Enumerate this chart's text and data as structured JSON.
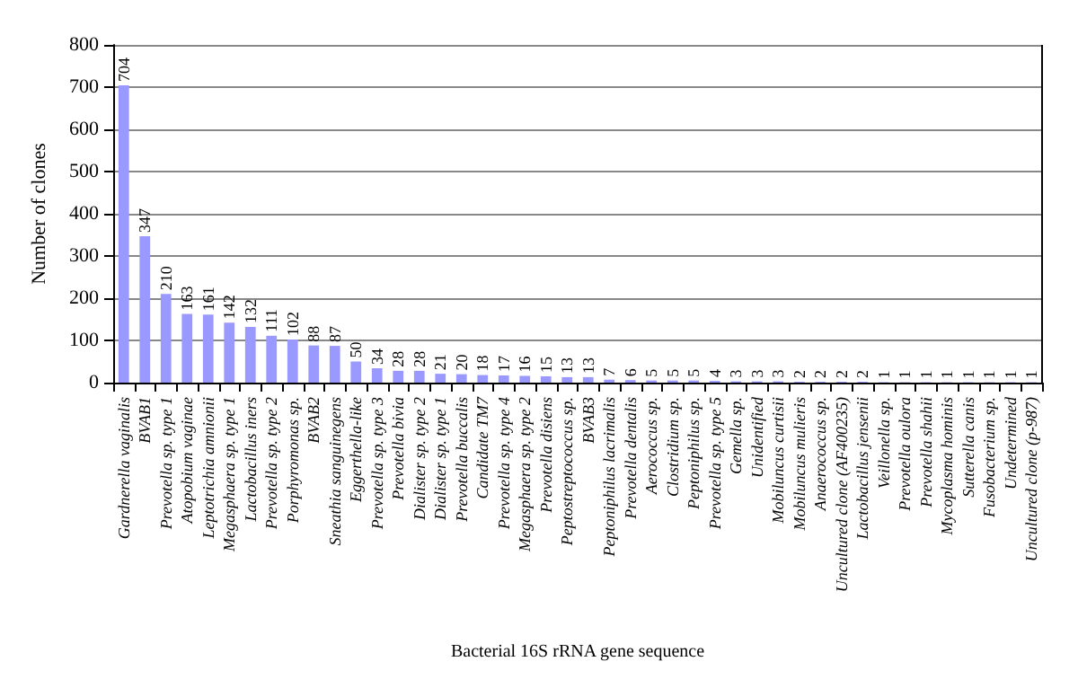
{
  "chart_data": {
    "type": "bar",
    "xlabel": "Bacterial 16S rRNA gene sequence",
    "ylabel": "Number of clones",
    "categories": [
      "Gardnerella vaginalis",
      "BVAB1",
      "Prevotella sp. type 1",
      "Atopobium vaginae",
      "Leptotrichia amnionii",
      "Megasphaera sp. type 1",
      "Lactobacillus iners",
      "Prevotella sp. type 2",
      "Porphyromonas sp.",
      "BVAB2",
      "Sneathia sanguinegens",
      "Eggerthella-like",
      "Prevotella sp. type 3",
      "Prevotella bivia",
      "Dialister sp. type 2",
      "Dialister sp. type 1",
      "Prevotella buccalis",
      "Candidate TM7",
      "Prevotella sp. type 4",
      "Megasphaera sp. type 2",
      "Prevotella disiens",
      "Peptostreptococcus sp.",
      "BVAB3",
      "Peptoniphilus lacrimalis",
      "Prevotella dentalis",
      "Aerococcus sp.",
      "Clostridium sp.",
      "Peptoniphilus sp.",
      "Prevotella sp. type 5",
      "Gemella sp.",
      "Unidentified",
      "Mobiluncus curtisii",
      "Mobiluncus mulieris",
      "Anaerococcus sp.",
      "Uncultured clone (AF400235)",
      "Lactobacillus jensenii",
      "Veillonella sp.",
      "Prevotella oulora",
      "Prevotella shahii",
      "Mycoplasma hominis",
      "Sutterella canis",
      "Fusobacterium sp.",
      "Undetermined",
      "Uncultured clone (p-987)"
    ],
    "values": [
      704,
      347,
      210,
      163,
      161,
      142,
      132,
      111,
      102,
      88,
      87,
      50,
      34,
      28,
      28,
      21,
      20,
      18,
      17,
      16,
      15,
      13,
      13,
      7,
      6,
      5,
      5,
      5,
      4,
      3,
      3,
      3,
      2,
      2,
      2,
      2,
      1,
      1,
      1,
      1,
      1,
      1,
      1,
      1
    ],
    "color": "#9999ff",
    "ylim": [
      0,
      800
    ],
    "yticks": [
      0,
      100,
      200,
      300,
      400,
      500,
      600,
      700,
      800
    ],
    "grid": "y",
    "data_labels": true
  }
}
